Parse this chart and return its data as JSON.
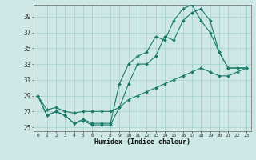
{
  "xlabel": "Humidex (Indice chaleur)",
  "bg_color": "#cde8e5",
  "grid_color": "#a8d4d0",
  "line_color": "#1a7a6a",
  "xlim": [
    -0.5,
    23.5
  ],
  "ylim": [
    24.5,
    40.5
  ],
  "xticks": [
    0,
    1,
    2,
    3,
    4,
    5,
    6,
    7,
    8,
    9,
    10,
    11,
    12,
    13,
    14,
    15,
    16,
    17,
    18,
    19,
    20,
    21,
    22,
    23
  ],
  "yticks": [
    25,
    27,
    29,
    31,
    33,
    35,
    37,
    39
  ],
  "line1_x": [
    0,
    1,
    2,
    3,
    4,
    5,
    6,
    7,
    8,
    9,
    10,
    11,
    12,
    13,
    14,
    15,
    16,
    17,
    18,
    19,
    20,
    21,
    22,
    23
  ],
  "line1_y": [
    29,
    26.5,
    27,
    26.5,
    25.5,
    26,
    25.5,
    25.5,
    25.5,
    30.5,
    33,
    34,
    34.5,
    36.5,
    36,
    38.5,
    40,
    40.5,
    38.5,
    37,
    34.5,
    32.5,
    32.5,
    32.5
  ],
  "line2_x": [
    0,
    1,
    2,
    3,
    4,
    5,
    6,
    7,
    8,
    9,
    10,
    11,
    12,
    13,
    14,
    15,
    16,
    17,
    18,
    19,
    20,
    21,
    22,
    23
  ],
  "line2_y": [
    29,
    26.5,
    27,
    26.5,
    25.5,
    25.8,
    25.3,
    25.3,
    25.3,
    27.5,
    30.5,
    33,
    33,
    34,
    36.5,
    36,
    38.5,
    39.5,
    40,
    38.5,
    34.5,
    32.5,
    32.5,
    32.5
  ],
  "line3_x": [
    0,
    1,
    2,
    3,
    4,
    5,
    6,
    7,
    8,
    9,
    10,
    11,
    12,
    13,
    14,
    15,
    16,
    17,
    18,
    19,
    20,
    21,
    22,
    23
  ],
  "line3_y": [
    29,
    27.2,
    27.5,
    27.0,
    26.8,
    27.0,
    27.0,
    27.0,
    27.0,
    27.5,
    28.5,
    29.0,
    29.5,
    30.0,
    30.5,
    31.0,
    31.5,
    32.0,
    32.5,
    32.0,
    31.5,
    31.5,
    32.0,
    32.5
  ]
}
